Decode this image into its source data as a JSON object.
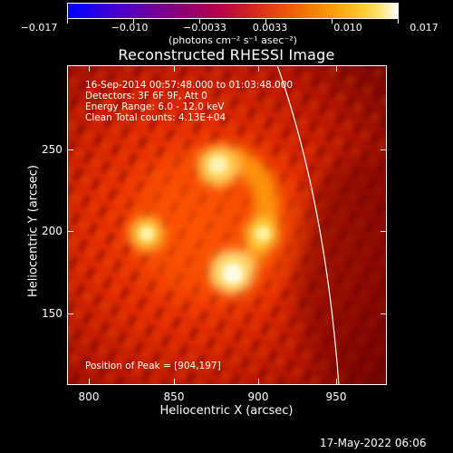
{
  "colorbar": {
    "tick_labels": [
      "−0.017",
      "−0.010",
      "−0.0033",
      "0.0033",
      "0.010",
      "0.017"
    ],
    "unit_label": "(photons cm⁻² s⁻¹ asec⁻²)"
  },
  "image": {
    "title": "Reconstructed RHESSI Image",
    "info_lines": [
      "16-Sep-2014 00:57:48.000 to 01:03:48.000",
      "Detectors: 3F 6F 9F, Att 0",
      "Energy Range: 6.0 - 12.0 keV",
      "Clean    Total counts: 4.13E+04"
    ],
    "peak_text": "Position of Peak = [904,197]"
  },
  "axes": {
    "x_title": "Heliocentric X (arcsec)",
    "y_title": "Heliocentric Y (arcsec)",
    "x_ticks": [
      "800",
      "850",
      "900",
      "950"
    ],
    "y_ticks": [
      "250",
      "200",
      "150"
    ]
  },
  "footer": {
    "timestamp": "17-May-2022 06:06"
  },
  "colors": {
    "background": "#000000",
    "foreground": "#ffffff",
    "colormap_low": "#0000ff",
    "colormap_high": "#ffffff"
  }
}
